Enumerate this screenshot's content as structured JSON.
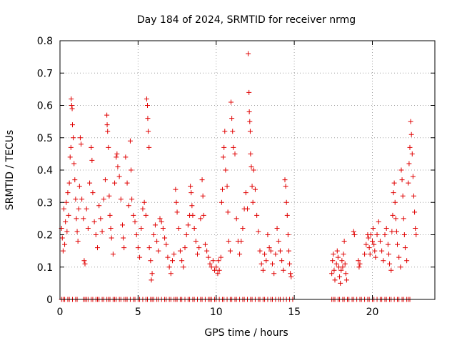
{
  "chart_data": {
    "type": "scatter",
    "title": "Day 184 of 2024, SRMTID for receiver nrmg",
    "xlabel": "GPS time / hours",
    "ylabel": "SRMTID / TECUs",
    "xlim": [
      0,
      24
    ],
    "ylim": [
      0,
      0.8
    ],
    "xticks": [
      0,
      5,
      10,
      15,
      20
    ],
    "xtick_labels": [
      "0",
      "5",
      "10",
      "15",
      "20"
    ],
    "yticks": [
      0,
      0.1,
      0.2,
      0.3,
      0.4,
      0.5,
      0.6,
      0.7,
      0.8
    ],
    "ytick_labels": [
      "0",
      "0.1",
      "0.2",
      "0.3",
      "0.4",
      "0.5",
      "0.6",
      "0.7",
      "0.8"
    ],
    "grid": true,
    "marker": "plus",
    "color": "#e00000",
    "series": [
      {
        "name": "SRMTID",
        "points": [
          [
            0.1,
            0.22
          ],
          [
            0.15,
            0.19
          ],
          [
            0.2,
            0.15
          ],
          [
            0.25,
            0.28
          ],
          [
            0.3,
            0.17
          ],
          [
            0.35,
            0.24
          ],
          [
            0.4,
            0.3
          ],
          [
            0.45,
            0.21
          ],
          [
            0.5,
            0.33
          ],
          [
            0.55,
            0.26
          ],
          [
            0.6,
            0.36
          ],
          [
            0.65,
            0.44
          ],
          [
            0.7,
            0.47
          ],
          [
            0.72,
            0.62
          ],
          [
            0.75,
            0.6
          ],
          [
            0.78,
            0.59
          ],
          [
            0.8,
            0.54
          ],
          [
            0.85,
            0.5
          ],
          [
            0.9,
            0.42
          ],
          [
            0.95,
            0.37
          ],
          [
            1.0,
            0.31
          ],
          [
            1.05,
            0.25
          ],
          [
            1.1,
            0.21
          ],
          [
            1.15,
            0.18
          ],
          [
            1.2,
            0.28
          ],
          [
            1.25,
            0.35
          ],
          [
            1.3,
            0.5
          ],
          [
            1.35,
            0.48
          ],
          [
            1.4,
            0.31
          ],
          [
            1.5,
            0.25
          ],
          [
            1.55,
            0.12
          ],
          [
            1.6,
            0.11
          ],
          [
            1.7,
            0.28
          ],
          [
            1.8,
            0.22
          ],
          [
            1.9,
            0.36
          ],
          [
            2.0,
            0.47
          ],
          [
            2.05,
            0.43
          ],
          [
            2.1,
            0.33
          ],
          [
            2.2,
            0.24
          ],
          [
            2.3,
            0.2
          ],
          [
            2.4,
            0.16
          ],
          [
            2.5,
            0.29
          ],
          [
            2.6,
            0.25
          ],
          [
            2.7,
            0.21
          ],
          [
            2.8,
            0.31
          ],
          [
            2.9,
            0.37
          ],
          [
            3.0,
            0.57
          ],
          [
            3.02,
            0.54
          ],
          [
            3.05,
            0.52
          ],
          [
            3.1,
            0.47
          ],
          [
            3.15,
            0.32
          ],
          [
            3.2,
            0.26
          ],
          [
            3.25,
            0.22
          ],
          [
            3.3,
            0.19
          ],
          [
            3.4,
            0.14
          ],
          [
            3.5,
            0.36
          ],
          [
            3.6,
            0.44
          ],
          [
            3.65,
            0.45
          ],
          [
            3.7,
            0.41
          ],
          [
            3.8,
            0.38
          ],
          [
            3.9,
            0.31
          ],
          [
            4.0,
            0.23
          ],
          [
            4.05,
            0.19
          ],
          [
            4.1,
            0.16
          ],
          [
            4.2,
            0.44
          ],
          [
            4.3,
            0.36
          ],
          [
            4.4,
            0.29
          ],
          [
            4.5,
            0.49
          ],
          [
            4.55,
            0.4
          ],
          [
            4.6,
            0.31
          ],
          [
            4.7,
            0.26
          ],
          [
            4.8,
            0.24
          ],
          [
            4.9,
            0.2
          ],
          [
            5.0,
            0.16
          ],
          [
            5.1,
            0.13
          ],
          [
            5.2,
            0.22
          ],
          [
            5.3,
            0.28
          ],
          [
            5.4,
            0.3
          ],
          [
            5.5,
            0.26
          ],
          [
            5.55,
            0.62
          ],
          [
            5.6,
            0.6
          ],
          [
            5.62,
            0.56
          ],
          [
            5.65,
            0.52
          ],
          [
            5.7,
            0.47
          ],
          [
            5.72,
            0.16
          ],
          [
            5.8,
            0.12
          ],
          [
            5.85,
            0.06
          ],
          [
            5.9,
            0.08
          ],
          [
            6.0,
            0.2
          ],
          [
            6.1,
            0.23
          ],
          [
            6.2,
            0.18
          ],
          [
            6.3,
            0.15
          ],
          [
            6.4,
            0.25
          ],
          [
            6.5,
            0.24
          ],
          [
            6.6,
            0.22
          ],
          [
            6.7,
            0.19
          ],
          [
            6.8,
            0.17
          ],
          [
            6.9,
            0.13
          ],
          [
            7.0,
            0.1
          ],
          [
            7.1,
            0.08
          ],
          [
            7.2,
            0.12
          ],
          [
            7.3,
            0.14
          ],
          [
            7.4,
            0.34
          ],
          [
            7.45,
            0.3
          ],
          [
            7.5,
            0.27
          ],
          [
            7.6,
            0.22
          ],
          [
            7.7,
            0.15
          ],
          [
            7.8,
            0.12
          ],
          [
            7.9,
            0.1
          ],
          [
            8.0,
            0.16
          ],
          [
            8.1,
            0.2
          ],
          [
            8.2,
            0.23
          ],
          [
            8.3,
            0.26
          ],
          [
            8.35,
            0.35
          ],
          [
            8.4,
            0.33
          ],
          [
            8.45,
            0.29
          ],
          [
            8.5,
            0.26
          ],
          [
            8.6,
            0.22
          ],
          [
            8.7,
            0.18
          ],
          [
            8.8,
            0.14
          ],
          [
            8.9,
            0.16
          ],
          [
            9.0,
            0.25
          ],
          [
            9.1,
            0.37
          ],
          [
            9.15,
            0.32
          ],
          [
            9.2,
            0.26
          ],
          [
            9.3,
            0.17
          ],
          [
            9.4,
            0.15
          ],
          [
            9.5,
            0.13
          ],
          [
            9.6,
            0.11
          ],
          [
            9.7,
            0.1
          ],
          [
            9.8,
            0.12
          ],
          [
            9.9,
            0.09
          ],
          [
            10.0,
            0.1
          ],
          [
            10.1,
            0.08
          ],
          [
            10.15,
            0.12
          ],
          [
            10.2,
            0.09
          ],
          [
            10.3,
            0.13
          ],
          [
            10.35,
            0.3
          ],
          [
            10.4,
            0.34
          ],
          [
            10.45,
            0.44
          ],
          [
            10.5,
            0.47
          ],
          [
            10.55,
            0.52
          ],
          [
            10.6,
            0.4
          ],
          [
            10.7,
            0.35
          ],
          [
            10.75,
            0.27
          ],
          [
            10.8,
            0.18
          ],
          [
            10.9,
            0.15
          ],
          [
            10.95,
            0.61
          ],
          [
            11.0,
            0.56
          ],
          [
            11.05,
            0.52
          ],
          [
            11.1,
            0.47
          ],
          [
            11.2,
            0.45
          ],
          [
            11.3,
            0.25
          ],
          [
            11.4,
            0.18
          ],
          [
            11.5,
            0.14
          ],
          [
            11.6,
            0.18
          ],
          [
            11.7,
            0.22
          ],
          [
            11.8,
            0.28
          ],
          [
            11.9,
            0.33
          ],
          [
            12.0,
            0.28
          ],
          [
            12.05,
            0.76
          ],
          [
            12.1,
            0.64
          ],
          [
            12.12,
            0.58
          ],
          [
            12.15,
            0.55
          ],
          [
            12.18,
            0.52
          ],
          [
            12.2,
            0.45
          ],
          [
            12.25,
            0.41
          ],
          [
            12.3,
            0.35
          ],
          [
            12.35,
            0.3
          ],
          [
            12.4,
            0.4
          ],
          [
            12.5,
            0.34
          ],
          [
            12.6,
            0.26
          ],
          [
            12.7,
            0.21
          ],
          [
            12.8,
            0.15
          ],
          [
            12.9,
            0.11
          ],
          [
            13.0,
            0.09
          ],
          [
            13.1,
            0.14
          ],
          [
            13.2,
            0.12
          ],
          [
            13.3,
            0.2
          ],
          [
            13.4,
            0.16
          ],
          [
            13.5,
            0.15
          ],
          [
            13.6,
            0.11
          ],
          [
            13.7,
            0.08
          ],
          [
            13.8,
            0.14
          ],
          [
            13.9,
            0.22
          ],
          [
            14.0,
            0.18
          ],
          [
            14.1,
            0.15
          ],
          [
            14.2,
            0.12
          ],
          [
            14.3,
            0.09
          ],
          [
            14.4,
            0.37
          ],
          [
            14.45,
            0.35
          ],
          [
            14.5,
            0.3
          ],
          [
            14.55,
            0.26
          ],
          [
            14.6,
            0.2
          ],
          [
            14.65,
            0.15
          ],
          [
            14.7,
            0.11
          ],
          [
            14.75,
            0.08
          ],
          [
            14.8,
            0.07
          ],
          [
            17.4,
            0.08
          ],
          [
            17.45,
            0.12
          ],
          [
            17.5,
            0.14
          ],
          [
            17.55,
            0.09
          ],
          [
            17.6,
            0.06
          ],
          [
            17.7,
            0.11
          ],
          [
            17.75,
            0.15
          ],
          [
            17.8,
            0.13
          ],
          [
            17.85,
            0.1
          ],
          [
            17.9,
            0.07
          ],
          [
            17.95,
            0.05
          ],
          [
            18.0,
            0.09
          ],
          [
            18.05,
            0.12
          ],
          [
            18.1,
            0.1
          ],
          [
            18.15,
            0.14
          ],
          [
            18.2,
            0.18
          ],
          [
            18.25,
            0.11
          ],
          [
            18.3,
            0.08
          ],
          [
            18.35,
            0.06
          ],
          [
            18.8,
            0.21
          ],
          [
            18.85,
            0.2
          ],
          [
            19.1,
            0.12
          ],
          [
            19.15,
            0.1
          ],
          [
            19.2,
            0.11
          ],
          [
            19.5,
            0.14
          ],
          [
            19.6,
            0.17
          ],
          [
            19.7,
            0.2
          ],
          [
            19.75,
            0.19
          ],
          [
            19.8,
            0.16
          ],
          [
            19.85,
            0.14
          ],
          [
            19.9,
            0.2
          ],
          [
            20.0,
            0.18
          ],
          [
            20.05,
            0.22
          ],
          [
            20.1,
            0.17
          ],
          [
            20.15,
            0.15
          ],
          [
            20.2,
            0.13
          ],
          [
            20.3,
            0.2
          ],
          [
            20.4,
            0.24
          ],
          [
            20.5,
            0.18
          ],
          [
            20.6,
            0.15
          ],
          [
            20.7,
            0.12
          ],
          [
            20.8,
            0.2
          ],
          [
            20.9,
            0.22
          ],
          [
            21.0,
            0.17
          ],
          [
            21.05,
            0.14
          ],
          [
            21.1,
            0.11
          ],
          [
            21.2,
            0.09
          ],
          [
            21.25,
            0.21
          ],
          [
            21.3,
            0.26
          ],
          [
            21.35,
            0.33
          ],
          [
            21.4,
            0.36
          ],
          [
            21.45,
            0.3
          ],
          [
            21.5,
            0.25
          ],
          [
            21.55,
            0.21
          ],
          [
            21.6,
            0.17
          ],
          [
            21.7,
            0.13
          ],
          [
            21.8,
            0.1
          ],
          [
            21.85,
            0.4
          ],
          [
            21.9,
            0.37
          ],
          [
            21.95,
            0.32
          ],
          [
            22.0,
            0.25
          ],
          [
            22.05,
            0.2
          ],
          [
            22.1,
            0.16
          ],
          [
            22.2,
            0.12
          ],
          [
            22.3,
            0.36
          ],
          [
            22.35,
            0.42
          ],
          [
            22.4,
            0.47
          ],
          [
            22.45,
            0.55
          ],
          [
            22.5,
            0.51
          ],
          [
            22.55,
            0.45
          ],
          [
            22.6,
            0.38
          ],
          [
            22.65,
            0.32
          ],
          [
            22.7,
            0.27
          ],
          [
            22.75,
            0.22
          ],
          [
            22.8,
            0.2
          ]
        ]
      }
    ],
    "zero_markers_x": [
      0.1,
      0.2,
      0.3,
      0.5,
      0.6,
      0.8,
      1.0,
      1.1,
      1.5,
      1.6,
      1.7,
      1.8,
      2.0,
      2.1,
      2.3,
      2.4,
      2.5,
      2.7,
      2.8,
      3.0,
      3.1,
      3.2,
      3.4,
      3.5,
      3.6,
      3.8,
      3.9,
      4.1,
      4.2,
      4.3,
      4.5,
      4.7,
      4.8,
      5.0,
      5.1,
      5.3,
      5.5,
      5.6,
      5.8,
      5.9,
      6.0,
      6.2,
      6.3,
      6.5,
      6.7,
      6.8,
      7.0,
      7.1,
      7.3,
      7.4,
      7.5,
      7.7,
      7.8,
      8.0,
      8.2,
      8.3,
      8.5,
      8.6,
      8.8,
      9.0,
      9.1,
      9.3,
      9.5,
      9.6,
      9.7,
      9.9,
      10.0,
      10.2,
      10.4,
      10.5,
      10.7,
      10.9,
      11.0,
      11.2,
      11.3,
      11.5,
      11.7,
      11.8,
      12.0,
      12.2,
      12.3,
      12.5,
      12.7,
      12.8,
      13.0,
      13.1,
      13.3,
      13.5,
      13.6,
      13.8,
      14.0,
      14.1,
      14.3,
      14.5,
      14.7,
      14.9,
      17.4,
      17.5,
      17.6,
      17.8,
      17.9,
      18.1,
      18.2,
      18.4,
      18.5,
      18.7,
      18.8,
      19.0,
      19.2,
      19.3,
      19.5,
      19.7,
      19.8,
      20.0,
      20.1,
      20.3,
      20.5,
      20.6,
      20.8,
      20.9,
      21.1,
      21.2,
      21.4,
      21.6,
      21.7,
      21.9,
      22.0,
      22.2,
      22.3,
      22.4
    ]
  }
}
